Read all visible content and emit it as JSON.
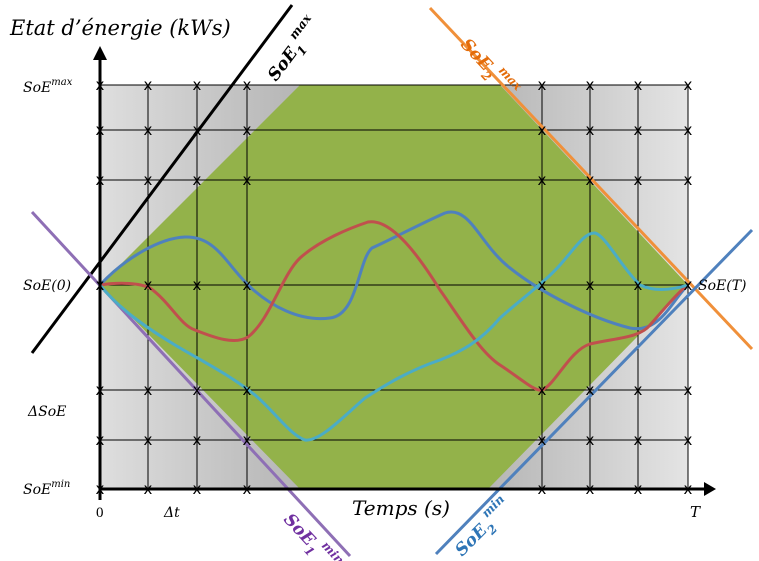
{
  "title": "Etat d’énergie (kWs)",
  "x_axis_label": "Temps (s)",
  "y_labels": {
    "soe_max": {
      "base": "SoE",
      "sup": "max"
    },
    "soe_0": "SoE(0)",
    "delta_soe": "ΔSoE",
    "soe_min": {
      "base": "SoE",
      "sup": "min"
    },
    "soe_t": "SoE(T)"
  },
  "x_labels": {
    "zero": "0",
    "dt": "Δt",
    "t_end": "T"
  },
  "boundary_labels": {
    "soe1_max": {
      "base": "SoE",
      "sub": "1",
      "sup": "max"
    },
    "soe2_max": {
      "base": "SoE",
      "sub": "2",
      "sup": "max"
    },
    "soe1_min": {
      "base": "SoE",
      "sub": "1",
      "sup": "min"
    },
    "soe2_min": {
      "base": "SoE",
      "sub": "2",
      "sup": "min"
    }
  },
  "grid_marker": "x",
  "colors": {
    "feasible_region": "#93b24a",
    "soe1_max_line": "#000000",
    "soe2_max_line": "#f0903a",
    "soe1_min_line": "#8e6fb5",
    "soe2_min_line": "#4f81bd",
    "trajectory_blue": "#4f81bd",
    "trajectory_red": "#c0504d",
    "trajectory_teal": "#4bacc6",
    "soe2_max_label": "#e46c0a",
    "soe1_min_label": "#7030a0",
    "soe2_min_label": "#2e75b6"
  }
}
